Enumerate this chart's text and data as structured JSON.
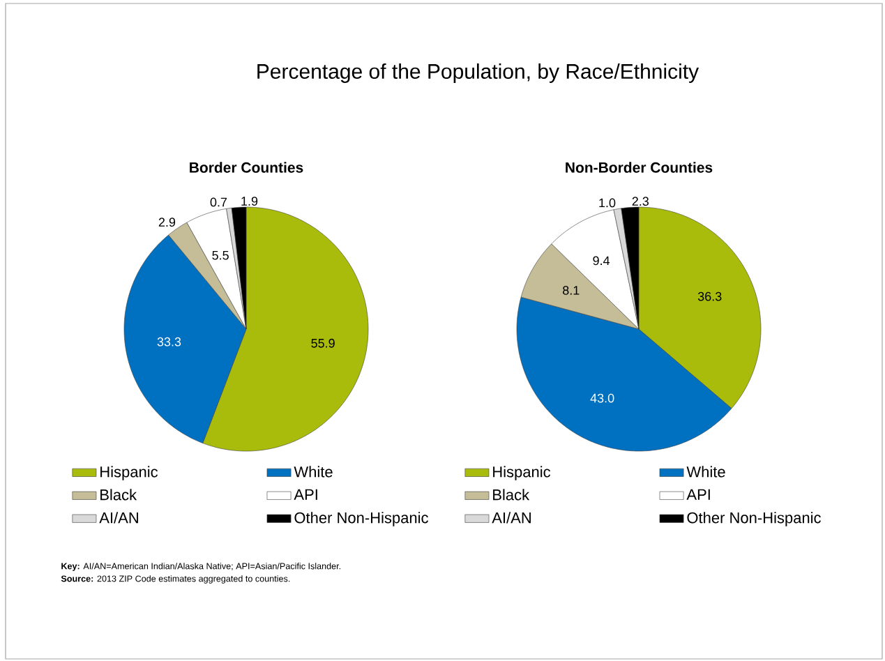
{
  "chart_data": [
    {
      "type": "pie",
      "title": "Percentage of the Population, by Race/Ethnicity",
      "subtitle": "Border Counties",
      "categories": [
        "Hispanic",
        "White",
        "Black",
        "API",
        "AI/AN",
        "Other Non-Hispanic"
      ],
      "values": [
        55.9,
        33.3,
        2.9,
        5.5,
        0.7,
        1.9
      ],
      "colors": [
        "#a9bc0b",
        "#0070c0",
        "#c4bd97",
        "#ffffff",
        "#d9d9d9",
        "#000000"
      ],
      "data_labels": true,
      "legend": "bottom",
      "annotations": [
        "**Key:** AI/AN=American Indian/Alaska Native; API=Asian/Pacific Islander.",
        "**Source:** 2013 ZIP Code estimates aggregated to counties."
      ]
    },
    {
      "type": "pie",
      "title": "Non-Border Counties",
      "categories": [
        "Hispanic",
        "White",
        "Black",
        "API",
        "AI/AN",
        "Other Non-Hispanic"
      ],
      "values": [
        36.3,
        43.0,
        8.1,
        9.4,
        1.0,
        2.3
      ],
      "value_labels": [
        "36.3",
        "43.0",
        "8.1",
        "9.4",
        "1.0",
        "2.3"
      ],
      "colors": [
        "#a9bc0b",
        "#0070c0",
        "#c4bd97",
        "#ffffff",
        "#d9d9d9",
        "#000000"
      ],
      "legend": "bottom"
    }
  ]
}
